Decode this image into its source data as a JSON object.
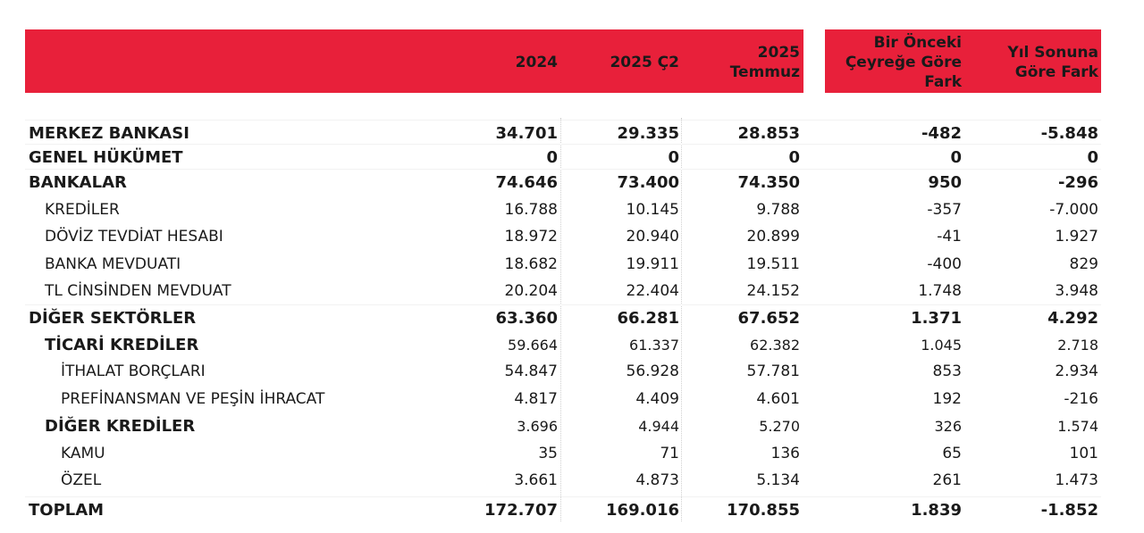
{
  "header": {
    "columns": [
      "2024",
      "2025 Ç2",
      "2025\nTemmuz",
      "Bir Önceki\nÇeyreğe Göre\nFark",
      "Yıl Sonuna\nGöre Fark"
    ]
  },
  "rows": [
    {
      "label": "MERKEZ BANKASI",
      "level": 0,
      "style": "bold",
      "values": [
        "34.701",
        "29.335",
        "28.853",
        "-482",
        "-5.848"
      ]
    },
    {
      "label": "GENEL HÜKÜMET",
      "level": 0,
      "style": "bold",
      "values": [
        "0",
        "0",
        "0",
        "0",
        "0"
      ]
    },
    {
      "label": "BANKALAR",
      "level": 0,
      "style": "bold",
      "values": [
        "74.646",
        "73.400",
        "74.350",
        "950",
        "-296"
      ]
    },
    {
      "label": "KREDİLER",
      "level": 1,
      "style": "norm",
      "values": [
        "16.788",
        "10.145",
        "9.788",
        "-357",
        "-7.000"
      ]
    },
    {
      "label": "DÖVİZ TEVDİAT HESABI",
      "level": 1,
      "style": "norm",
      "values": [
        "18.972",
        "20.940",
        "20.899",
        "-41",
        "1.927"
      ]
    },
    {
      "label": "BANKA MEVDUATI",
      "level": 1,
      "style": "norm",
      "values": [
        "18.682",
        "19.911",
        "19.511",
        "-400",
        "829"
      ]
    },
    {
      "label": "TL CİNSİNDEN MEVDUAT",
      "level": 1,
      "style": "norm",
      "values": [
        "20.204",
        "22.404",
        "24.152",
        "1.748",
        "3.948"
      ]
    },
    {
      "label": "DİĞER SEKTÖRLER",
      "level": 0,
      "style": "bold",
      "values": [
        "63.360",
        "66.281",
        "67.652",
        "1.371",
        "4.292"
      ]
    },
    {
      "label": "TİCARİ KREDİLER",
      "level": 1,
      "style": "sub",
      "values": [
        "59.664",
        "61.337",
        "62.382",
        "1.045",
        "2.718"
      ]
    },
    {
      "label": "İTHALAT BORÇLARI",
      "level": 2,
      "style": "norm",
      "values": [
        "54.847",
        "56.928",
        "57.781",
        "853",
        "2.934"
      ]
    },
    {
      "label": "PREFİNANSMAN VE PEŞİN İHRACAT",
      "level": 2,
      "style": "norm",
      "values": [
        "4.817",
        "4.409",
        "4.601",
        "192",
        "-216"
      ]
    },
    {
      "label": "DİĞER KREDİLER",
      "level": 1,
      "style": "sub",
      "values": [
        "3.696",
        "4.944",
        "5.270",
        "326",
        "1.574"
      ]
    },
    {
      "label": "KAMU",
      "level": 2,
      "style": "norm",
      "values": [
        "35",
        "71",
        "136",
        "65",
        "101"
      ]
    },
    {
      "label": "ÖZEL",
      "level": 2,
      "style": "norm",
      "values": [
        "3.661",
        "4.873",
        "5.134",
        "261",
        "1.473"
      ]
    },
    {
      "label": "TOPLAM",
      "level": 0,
      "style": "bold",
      "values": [
        "172.707",
        "169.016",
        "170.855",
        "1.839",
        "-1.852"
      ]
    }
  ]
}
